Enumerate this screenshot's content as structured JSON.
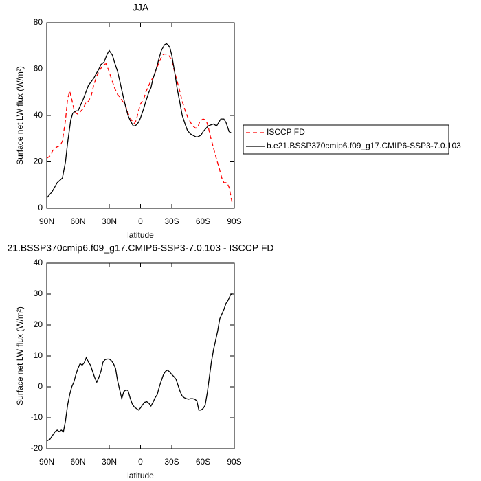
{
  "chart_data": [
    {
      "type": "line",
      "title": "JJA",
      "xlabel": "latitude",
      "ylabel": "Surface net LW flux (W/m²)",
      "xlim": [
        90,
        -90
      ],
      "xticks": [
        {
          "value": 90,
          "label": "90N"
        },
        {
          "value": 60,
          "label": "60N"
        },
        {
          "value": 30,
          "label": "30N"
        },
        0,
        {
          "value": -30,
          "label": "30S"
        },
        {
          "value": -60,
          "label": "60S"
        },
        {
          "value": -90,
          "label": "90S"
        }
      ],
      "ylim": [
        0,
        80
      ],
      "yticks": [
        0,
        20,
        40,
        60,
        80
      ],
      "legend": "right",
      "series": [
        {
          "name": "ISCCP FD",
          "color": "#ff0000",
          "dashed": true,
          "x": [
            90,
            87,
            84,
            80,
            77,
            75,
            72,
            70,
            68,
            66,
            64,
            62,
            60,
            58,
            55,
            52,
            50,
            47,
            45,
            42,
            40,
            37,
            35,
            33,
            31,
            28,
            25,
            22,
            20,
            17,
            15,
            12,
            10,
            8,
            6,
            4,
            2,
            0,
            -3,
            -5,
            -8,
            -10,
            -13,
            -15,
            -18,
            -20,
            -22,
            -25,
            -27,
            -30,
            -32,
            -35,
            -38,
            -40,
            -43,
            -45,
            -48,
            -50,
            -53,
            -55,
            -57,
            -60,
            -63,
            -65,
            -67,
            -70,
            -73,
            -75,
            -78,
            -80,
            -83,
            -85,
            -88
          ],
          "values": [
            21.5,
            22.5,
            25,
            26.5,
            27,
            29,
            38,
            47,
            50.5,
            47,
            43,
            41,
            40.5,
            41.5,
            43,
            46,
            46,
            49,
            53,
            57,
            59,
            61,
            62,
            62.3,
            60,
            56,
            52,
            49,
            48,
            46,
            45,
            41,
            39,
            37.5,
            36.5,
            38,
            42,
            45,
            47,
            50,
            53,
            55,
            57,
            60,
            63,
            65,
            66.5,
            66.5,
            66,
            64,
            60,
            55,
            50,
            46,
            42,
            39.5,
            37,
            35.5,
            34.5,
            35,
            37.5,
            38.5,
            38,
            35,
            31,
            26,
            21,
            18,
            13,
            11,
            11,
            9,
            2
          ]
        },
        {
          "name": "b.e21.BSSP370cmip6.f09_g17.CMIP6-SSP3-7.0.103",
          "color": "#000000",
          "dashed": false,
          "x": [
            90,
            85,
            80,
            75,
            72,
            70,
            67,
            65,
            62,
            60,
            55,
            50,
            45,
            40,
            38,
            35,
            32,
            30,
            27,
            25,
            22,
            20,
            17,
            15,
            12,
            10,
            7,
            5,
            2,
            0,
            -3,
            -5,
            -8,
            -10,
            -12,
            -15,
            -18,
            -20,
            -23,
            -25,
            -28,
            -30,
            -33,
            -35,
            -38,
            -40,
            -43,
            -45,
            -48,
            -50,
            -53,
            -55,
            -58,
            -60,
            -63,
            -65,
            -68,
            -70,
            -73,
            -75,
            -77,
            -80,
            -82,
            -85,
            -87
          ],
          "values": [
            4.5,
            7,
            11,
            13,
            20,
            28,
            38,
            41,
            42,
            42,
            47,
            53,
            56,
            60,
            62,
            63,
            66.5,
            68,
            66,
            63,
            59,
            55,
            49,
            45,
            40,
            38,
            35.5,
            35.5,
            37,
            39,
            43,
            46,
            50,
            52,
            56,
            60,
            65,
            68,
            70.5,
            71,
            69.5,
            66,
            58,
            52,
            45,
            40,
            36,
            33.5,
            32,
            31.5,
            30.8,
            30.8,
            31.5,
            33,
            34.5,
            35.5,
            36,
            36.3,
            35.5,
            37,
            38.5,
            38.5,
            37,
            33,
            32.5
          ]
        }
      ]
    },
    {
      "type": "line",
      "title": "21.BSSP370cmip6.f09_g17.CMIP6-SSP3-7.0.103 - ISCCP FD",
      "xlabel": "latitude",
      "ylabel": "Surface net LW flux (W/m²)",
      "xlim": [
        90,
        -90
      ],
      "xticks": [
        {
          "value": 90,
          "label": "90N"
        },
        {
          "value": 60,
          "label": "60N"
        },
        {
          "value": 30,
          "label": "30N"
        },
        0,
        {
          "value": -30,
          "label": "30S"
        },
        {
          "value": -60,
          "label": "60S"
        },
        {
          "value": -90,
          "label": "90S"
        }
      ],
      "ylim": [
        -20,
        40
      ],
      "yticks": [
        -20,
        -10,
        0,
        10,
        20,
        30,
        40
      ],
      "series": [
        {
          "color": "#000000",
          "dashed": false,
          "x": [
            90,
            87,
            85,
            82,
            80,
            78,
            76,
            74,
            72,
            70,
            68,
            66,
            64,
            62,
            60,
            58,
            56,
            54,
            52,
            50,
            48,
            46,
            44,
            42,
            40,
            38,
            36,
            34,
            32,
            30,
            28,
            26,
            24,
            22,
            20,
            18,
            16,
            14,
            12,
            10,
            8,
            6,
            4,
            2,
            0,
            -2,
            -4,
            -6,
            -8,
            -10,
            -12,
            -14,
            -16,
            -18,
            -20,
            -22,
            -24,
            -26,
            -28,
            -30,
            -32,
            -34,
            -36,
            -38,
            -40,
            -42,
            -44,
            -46,
            -48,
            -50,
            -52,
            -54,
            -56,
            -58,
            -60,
            -62,
            -64,
            -66,
            -68,
            -70,
            -72,
            -74,
            -76,
            -78,
            -80,
            -82,
            -84,
            -86,
            -88
          ],
          "values": [
            -17.5,
            -17,
            -16,
            -14.5,
            -14,
            -14.5,
            -14,
            -14.5,
            -11,
            -6,
            -2.5,
            0,
            1.5,
            4,
            6,
            7.5,
            7,
            7.8,
            9.5,
            8,
            7,
            5,
            3,
            1.5,
            3,
            5,
            8,
            8.8,
            9,
            9,
            8.5,
            7.5,
            6,
            2,
            -1,
            -3.8,
            -1.5,
            -1,
            -1.2,
            -3.5,
            -5.5,
            -6.5,
            -7,
            -7.5,
            -6.8,
            -5.8,
            -5,
            -4.8,
            -5.3,
            -6.2,
            -5,
            -3.5,
            -2.5,
            0,
            2,
            4,
            5,
            5.4,
            4.8,
            4,
            3.3,
            2.5,
            0.5,
            -1.5,
            -3,
            -3.5,
            -3.8,
            -4,
            -3.8,
            -3.8,
            -4,
            -4.5,
            -7.5,
            -7.5,
            -7,
            -6,
            -2,
            3,
            8,
            12,
            15,
            18,
            22,
            23.5,
            25,
            27,
            28,
            29.5,
            30.3
          ]
        }
      ]
    }
  ]
}
